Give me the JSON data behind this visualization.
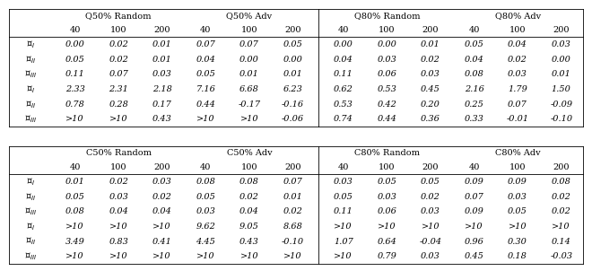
{
  "sections": [
    {
      "title": "Q50% Random",
      "adv_title": "Q50% Adv",
      "rows": [
        {
          "values": [
            "0.00",
            "0.02",
            "0.01"
          ]
        },
        {
          "values": [
            "0.05",
            "0.02",
            "0.01"
          ]
        },
        {
          "values": [
            "0.11",
            "0.07",
            "0.03"
          ]
        },
        {
          "values": [
            "2.33",
            "2.31",
            "2.18"
          ]
        },
        {
          "values": [
            "0.78",
            "0.28",
            "0.17"
          ]
        },
        {
          "values": [
            ">10",
            ">10",
            "0.43"
          ]
        }
      ],
      "adv_rows": [
        {
          "values": [
            "0.07",
            "0.07",
            "0.05"
          ]
        },
        {
          "values": [
            "0.04",
            "0.00",
            "0.00"
          ]
        },
        {
          "values": [
            "0.05",
            "0.01",
            "0.01"
          ]
        },
        {
          "values": [
            "7.16",
            "6.68",
            "6.23"
          ]
        },
        {
          "values": [
            "0.44",
            "-0.17",
            "-0.16"
          ]
        },
        {
          "values": [
            ">10",
            ">10",
            "-0.06"
          ]
        }
      ]
    },
    {
      "title": "Q80% Random",
      "adv_title": "Q80% Adv",
      "rows": [
        {
          "values": [
            "0.00",
            "0.00",
            "0.01"
          ]
        },
        {
          "values": [
            "0.04",
            "0.03",
            "0.02"
          ]
        },
        {
          "values": [
            "0.11",
            "0.06",
            "0.03"
          ]
        },
        {
          "values": [
            "0.62",
            "0.53",
            "0.45"
          ]
        },
        {
          "values": [
            "0.53",
            "0.42",
            "0.20"
          ]
        },
        {
          "values": [
            "0.74",
            "0.44",
            "0.36"
          ]
        }
      ],
      "adv_rows": [
        {
          "values": [
            "0.05",
            "0.04",
            "0.03"
          ]
        },
        {
          "values": [
            "0.04",
            "0.02",
            "0.00"
          ]
        },
        {
          "values": [
            "0.08",
            "0.03",
            "0.01"
          ]
        },
        {
          "values": [
            "2.16",
            "1.79",
            "1.50"
          ]
        },
        {
          "values": [
            "0.25",
            "0.07",
            "-0.09"
          ]
        },
        {
          "values": [
            "0.33",
            "-0.01",
            "-0.10"
          ]
        }
      ]
    },
    {
      "title": "C50% Random",
      "adv_title": "C50% Adv",
      "rows": [
        {
          "values": [
            "0.01",
            "0.02",
            "0.03"
          ]
        },
        {
          "values": [
            "0.05",
            "0.03",
            "0.02"
          ]
        },
        {
          "values": [
            "0.08",
            "0.04",
            "0.04"
          ]
        },
        {
          "values": [
            ">10",
            ">10",
            ">10"
          ]
        },
        {
          "values": [
            "3.49",
            "0.83",
            "0.41"
          ]
        },
        {
          "values": [
            ">10",
            ">10",
            ">10"
          ]
        }
      ],
      "adv_rows": [
        {
          "values": [
            "0.08",
            "0.08",
            "0.07"
          ]
        },
        {
          "values": [
            "0.05",
            "0.02",
            "0.01"
          ]
        },
        {
          "values": [
            "0.03",
            "0.04",
            "0.02"
          ]
        },
        {
          "values": [
            "9.62",
            "9.05",
            "8.68"
          ]
        },
        {
          "values": [
            "4.45",
            "0.43",
            "-0.10"
          ]
        },
        {
          "values": [
            ">10",
            ">10",
            ">10"
          ]
        }
      ]
    },
    {
      "title": "C80% Random",
      "adv_title": "C80% Adv",
      "rows": [
        {
          "values": [
            "0.03",
            "0.05",
            "0.05"
          ]
        },
        {
          "values": [
            "0.05",
            "0.03",
            "0.02"
          ]
        },
        {
          "values": [
            "0.11",
            "0.06",
            "0.03"
          ]
        },
        {
          "values": [
            ">10",
            ">10",
            ">10"
          ]
        },
        {
          "values": [
            "1.07",
            "0.64",
            "-0.04"
          ]
        },
        {
          "values": [
            ">10",
            "0.79",
            "0.03"
          ]
        }
      ],
      "adv_rows": [
        {
          "values": [
            "0.09",
            "0.09",
            "0.08"
          ]
        },
        {
          "values": [
            "0.07",
            "0.03",
            "0.02"
          ]
        },
        {
          "values": [
            "0.09",
            "0.05",
            "0.02"
          ]
        },
        {
          "values": [
            ">10",
            ">10",
            ">10"
          ]
        },
        {
          "values": [
            "0.96",
            "0.30",
            "0.14"
          ]
        },
        {
          "values": [
            "0.45",
            "0.18",
            "-0.03"
          ]
        }
      ]
    }
  ],
  "row_labels": [
    {
      "symbol": "E",
      "sub": "I"
    },
    {
      "symbol": "E",
      "sub": "II"
    },
    {
      "symbol": "E",
      "sub": "III"
    },
    {
      "symbol": "L",
      "sub": "I"
    },
    {
      "symbol": "L",
      "sub": "II"
    },
    {
      "symbol": "L",
      "sub": "III"
    }
  ],
  "titles_top": [
    "Q50% Random",
    "Q50% Adv",
    "Q80% Random",
    "Q80% Adv"
  ],
  "titles_bot": [
    "C50% Random",
    "C50% Adv",
    "C80% Random",
    "C80% Adv"
  ],
  "col_headers": [
    "40",
    "100",
    "200"
  ],
  "title_fs": 7.0,
  "header_fs": 7.0,
  "data_fs": 7.0,
  "label_fs": 7.0
}
